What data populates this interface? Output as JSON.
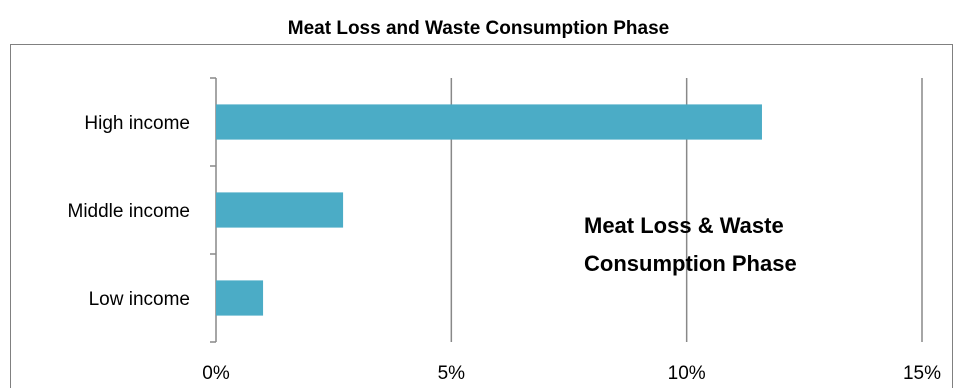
{
  "chart_data": {
    "type": "bar",
    "orientation": "horizontal",
    "title": "Meat Loss and Waste Consumption Phase",
    "categories": [
      "High income",
      "Middle income",
      "Low income"
    ],
    "values": [
      11.6,
      2.7,
      1.0
    ],
    "xlim": [
      0,
      15
    ],
    "xticks": [
      0,
      5,
      10,
      15
    ],
    "xtick_labels": [
      "0%",
      "5%",
      "10%",
      "15%"
    ],
    "xlabel": "",
    "ylabel": "",
    "grid": "vertical",
    "bar_color": "#4BACC6",
    "annotation_lines": [
      "Meat Loss & Waste",
      "Consumption Phase"
    ],
    "legend": "none"
  }
}
